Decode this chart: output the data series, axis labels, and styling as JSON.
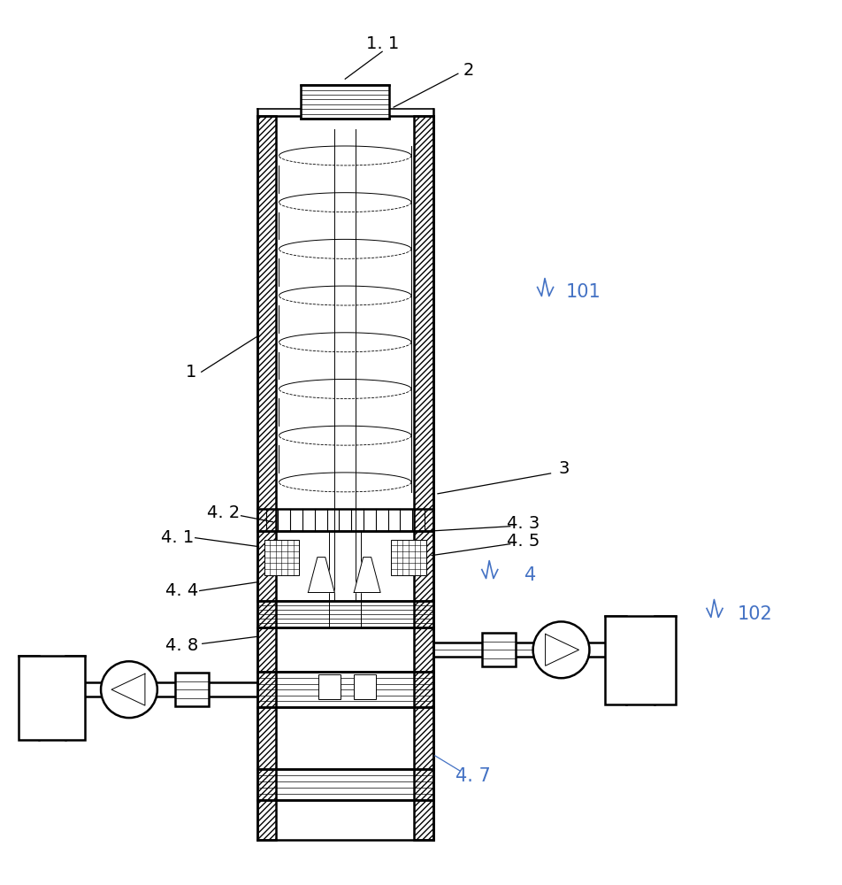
{
  "bg_color": "#ffffff",
  "line_color": "#000000",
  "label_color_blue": "#4472c4",
  "label_color_black": "#000000",
  "figsize": [
    9.53,
    10.0
  ],
  "dpi": 100
}
